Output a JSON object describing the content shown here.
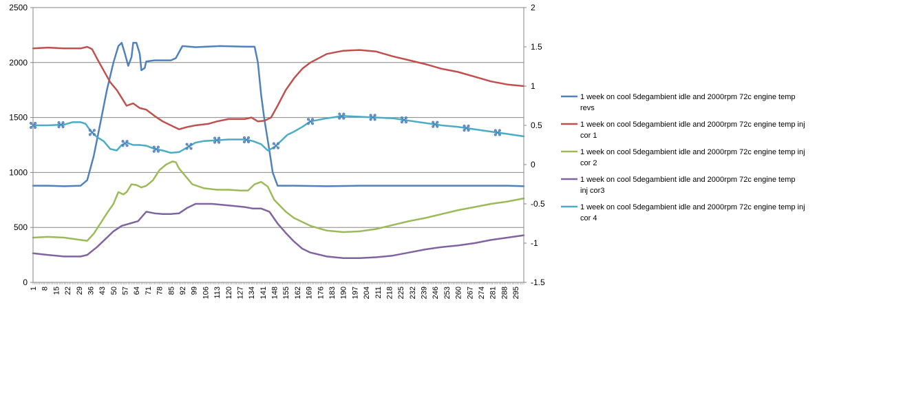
{
  "chart_data": {
    "type": "line",
    "title": "",
    "xlabel": "",
    "ylabel": "",
    "xlim": [
      1,
      300
    ],
    "ylim": [
      0,
      2500
    ],
    "y2lim": [
      -1.5,
      2
    ],
    "y_ticks": [
      "0",
      "500",
      "1000",
      "1500",
      "2000",
      "2500"
    ],
    "y2_ticks": [
      "-1.5",
      "-1",
      "-0.5",
      "0",
      "0.5",
      "1",
      "1.5",
      "2"
    ],
    "x_ticks": [
      "1",
      "8",
      "15",
      "22",
      "29",
      "36",
      "43",
      "50",
      "57",
      "64",
      "71",
      "78",
      "85",
      "92",
      "99",
      "106",
      "113",
      "120",
      "127",
      "134",
      "141",
      "148",
      "155",
      "162",
      "169",
      "176",
      "183",
      "190",
      "197",
      "204",
      "211",
      "218",
      "225",
      "232",
      "239",
      "246",
      "253",
      "260",
      "267",
      "274",
      "281",
      "288",
      "295"
    ],
    "grid": "horizontal",
    "legend_position": "right",
    "series": [
      {
        "name": "1 week on  cool   5degambient idle and 2000rpm 72c engine temp revs",
        "axis": "primary",
        "color": "#4F81BD",
        "points": [
          [
            1,
            880
          ],
          [
            10,
            880
          ],
          [
            20,
            875
          ],
          [
            30,
            880
          ],
          [
            34,
            930
          ],
          [
            38,
            1150
          ],
          [
            42,
            1450
          ],
          [
            46,
            1750
          ],
          [
            50,
            2000
          ],
          [
            53,
            2150
          ],
          [
            55,
            2180
          ],
          [
            57,
            2080
          ],
          [
            59,
            1970
          ],
          [
            61,
            2050
          ],
          [
            62,
            2180
          ],
          [
            64,
            2180
          ],
          [
            66,
            2080
          ],
          [
            67,
            1930
          ],
          [
            69,
            1950
          ],
          [
            70,
            2010
          ],
          [
            75,
            2020
          ],
          [
            85,
            2020
          ],
          [
            88,
            2040
          ],
          [
            92,
            2150
          ],
          [
            100,
            2140
          ],
          [
            115,
            2150
          ],
          [
            130,
            2145
          ],
          [
            136,
            2145
          ],
          [
            138,
            2000
          ],
          [
            140,
            1700
          ],
          [
            142,
            1480
          ],
          [
            145,
            1200
          ],
          [
            147,
            1000
          ],
          [
            150,
            880
          ],
          [
            160,
            880
          ],
          [
            180,
            875
          ],
          [
            200,
            880
          ],
          [
            230,
            880
          ],
          [
            260,
            880
          ],
          [
            290,
            880
          ],
          [
            300,
            875
          ]
        ]
      },
      {
        "name": "1 week on  cool   5degambient idle and 2000rpm 72c engine temp inj cor 1",
        "axis": "secondary",
        "color": "#C0504D",
        "points": [
          [
            1,
            1.48
          ],
          [
            10,
            1.49
          ],
          [
            20,
            1.48
          ],
          [
            30,
            1.48
          ],
          [
            34,
            1.5
          ],
          [
            37,
            1.47
          ],
          [
            40,
            1.35
          ],
          [
            44,
            1.2
          ],
          [
            48,
            1.05
          ],
          [
            52,
            0.95
          ],
          [
            55,
            0.85
          ],
          [
            58,
            0.75
          ],
          [
            62,
            0.78
          ],
          [
            66,
            0.72
          ],
          [
            70,
            0.7
          ],
          [
            75,
            0.62
          ],
          [
            80,
            0.55
          ],
          [
            85,
            0.5
          ],
          [
            90,
            0.45
          ],
          [
            95,
            0.48
          ],
          [
            100,
            0.5
          ],
          [
            108,
            0.52
          ],
          [
            113,
            0.55
          ],
          [
            120,
            0.58
          ],
          [
            130,
            0.58
          ],
          [
            134,
            0.6
          ],
          [
            138,
            0.55
          ],
          [
            142,
            0.56
          ],
          [
            146,
            0.6
          ],
          [
            150,
            0.75
          ],
          [
            155,
            0.95
          ],
          [
            160,
            1.1
          ],
          [
            165,
            1.22
          ],
          [
            170,
            1.3
          ],
          [
            180,
            1.41
          ],
          [
            190,
            1.45
          ],
          [
            200,
            1.46
          ],
          [
            210,
            1.44
          ],
          [
            220,
            1.38
          ],
          [
            230,
            1.33
          ],
          [
            240,
            1.28
          ],
          [
            250,
            1.22
          ],
          [
            260,
            1.18
          ],
          [
            270,
            1.12
          ],
          [
            280,
            1.06
          ],
          [
            290,
            1.02
          ],
          [
            300,
            1.0
          ]
        ]
      },
      {
        "name": "1 week on  cool   5degambient idle and 2000rpm 72c engine temp inj cor 2",
        "axis": "secondary",
        "color": "#9BBB59",
        "points": [
          [
            1,
            -0.93
          ],
          [
            10,
            -0.92
          ],
          [
            20,
            -0.93
          ],
          [
            30,
            -0.96
          ],
          [
            34,
            -0.97
          ],
          [
            38,
            -0.88
          ],
          [
            42,
            -0.75
          ],
          [
            46,
            -0.62
          ],
          [
            50,
            -0.5
          ],
          [
            53,
            -0.35
          ],
          [
            56,
            -0.38
          ],
          [
            58,
            -0.35
          ],
          [
            61,
            -0.25
          ],
          [
            64,
            -0.26
          ],
          [
            67,
            -0.29
          ],
          [
            70,
            -0.27
          ],
          [
            74,
            -0.2
          ],
          [
            78,
            -0.07
          ],
          [
            82,
            0.0
          ],
          [
            86,
            0.04
          ],
          [
            88,
            0.03
          ],
          [
            90,
            -0.05
          ],
          [
            94,
            -0.15
          ],
          [
            98,
            -0.25
          ],
          [
            105,
            -0.3
          ],
          [
            113,
            -0.32
          ],
          [
            120,
            -0.32
          ],
          [
            127,
            -0.33
          ],
          [
            132,
            -0.33
          ],
          [
            136,
            -0.25
          ],
          [
            140,
            -0.22
          ],
          [
            144,
            -0.28
          ],
          [
            148,
            -0.45
          ],
          [
            155,
            -0.6
          ],
          [
            160,
            -0.68
          ],
          [
            170,
            -0.78
          ],
          [
            180,
            -0.84
          ],
          [
            190,
            -0.86
          ],
          [
            200,
            -0.85
          ],
          [
            210,
            -0.82
          ],
          [
            220,
            -0.77
          ],
          [
            230,
            -0.72
          ],
          [
            240,
            -0.68
          ],
          [
            250,
            -0.63
          ],
          [
            260,
            -0.58
          ],
          [
            270,
            -0.54
          ],
          [
            280,
            -0.5
          ],
          [
            290,
            -0.47
          ],
          [
            300,
            -0.43
          ]
        ]
      },
      {
        "name": "1 week on  cool   5degambient idle and 2000rpm 72c engine temp inj cor3",
        "axis": "secondary",
        "color": "#8064A2",
        "points": [
          [
            1,
            -1.13
          ],
          [
            10,
            -1.15
          ],
          [
            20,
            -1.17
          ],
          [
            30,
            -1.17
          ],
          [
            34,
            -1.15
          ],
          [
            40,
            -1.05
          ],
          [
            45,
            -0.95
          ],
          [
            50,
            -0.85
          ],
          [
            55,
            -0.78
          ],
          [
            60,
            -0.75
          ],
          [
            65,
            -0.72
          ],
          [
            70,
            -0.6
          ],
          [
            75,
            -0.62
          ],
          [
            80,
            -0.63
          ],
          [
            85,
            -0.63
          ],
          [
            90,
            -0.62
          ],
          [
            95,
            -0.55
          ],
          [
            100,
            -0.5
          ],
          [
            110,
            -0.5
          ],
          [
            120,
            -0.52
          ],
          [
            130,
            -0.54
          ],
          [
            135,
            -0.56
          ],
          [
            140,
            -0.56
          ],
          [
            145,
            -0.6
          ],
          [
            150,
            -0.75
          ],
          [
            155,
            -0.87
          ],
          [
            160,
            -0.98
          ],
          [
            165,
            -1.07
          ],
          [
            170,
            -1.12
          ],
          [
            180,
            -1.17
          ],
          [
            190,
            -1.19
          ],
          [
            200,
            -1.19
          ],
          [
            210,
            -1.18
          ],
          [
            220,
            -1.16
          ],
          [
            230,
            -1.12
          ],
          [
            240,
            -1.08
          ],
          [
            250,
            -1.05
          ],
          [
            260,
            -1.03
          ],
          [
            270,
            -1.0
          ],
          [
            280,
            -0.96
          ],
          [
            290,
            -0.93
          ],
          [
            300,
            -0.9
          ]
        ]
      },
      {
        "name": "1 week on  cool   5degambient idle and 2000rpm 72c engine temp inj cor 4",
        "axis": "secondary",
        "color": "#4BACC6",
        "points": [
          [
            1,
            0.5
          ],
          [
            10,
            0.5
          ],
          [
            20,
            0.51
          ],
          [
            25,
            0.54
          ],
          [
            30,
            0.54
          ],
          [
            33,
            0.52
          ],
          [
            36,
            0.43
          ],
          [
            40,
            0.35
          ],
          [
            44,
            0.3
          ],
          [
            48,
            0.2
          ],
          [
            52,
            0.18
          ],
          [
            55,
            0.25
          ],
          [
            58,
            0.28
          ],
          [
            62,
            0.25
          ],
          [
            66,
            0.25
          ],
          [
            70,
            0.24
          ],
          [
            75,
            0.2
          ],
          [
            80,
            0.18
          ],
          [
            85,
            0.15
          ],
          [
            90,
            0.16
          ],
          [
            95,
            0.22
          ],
          [
            100,
            0.28
          ],
          [
            105,
            0.3
          ],
          [
            113,
            0.31
          ],
          [
            120,
            0.32
          ],
          [
            130,
            0.32
          ],
          [
            135,
            0.3
          ],
          [
            140,
            0.26
          ],
          [
            144,
            0.18
          ],
          [
            148,
            0.22
          ],
          [
            152,
            0.3
          ],
          [
            156,
            0.38
          ],
          [
            160,
            0.42
          ],
          [
            165,
            0.48
          ],
          [
            170,
            0.55
          ],
          [
            180,
            0.59
          ],
          [
            190,
            0.62
          ],
          [
            200,
            0.61
          ],
          [
            210,
            0.6
          ],
          [
            220,
            0.59
          ],
          [
            230,
            0.56
          ],
          [
            240,
            0.53
          ],
          [
            250,
            0.5
          ],
          [
            260,
            0.48
          ],
          [
            270,
            0.45
          ],
          [
            280,
            0.42
          ],
          [
            290,
            0.39
          ],
          [
            300,
            0.36
          ]
        ]
      }
    ],
    "markers": {
      "series_index": 4,
      "x": [
        1,
        18,
        37,
        57,
        76,
        96,
        113,
        131,
        149,
        170,
        189,
        208,
        227,
        246,
        265,
        284
      ]
    }
  }
}
